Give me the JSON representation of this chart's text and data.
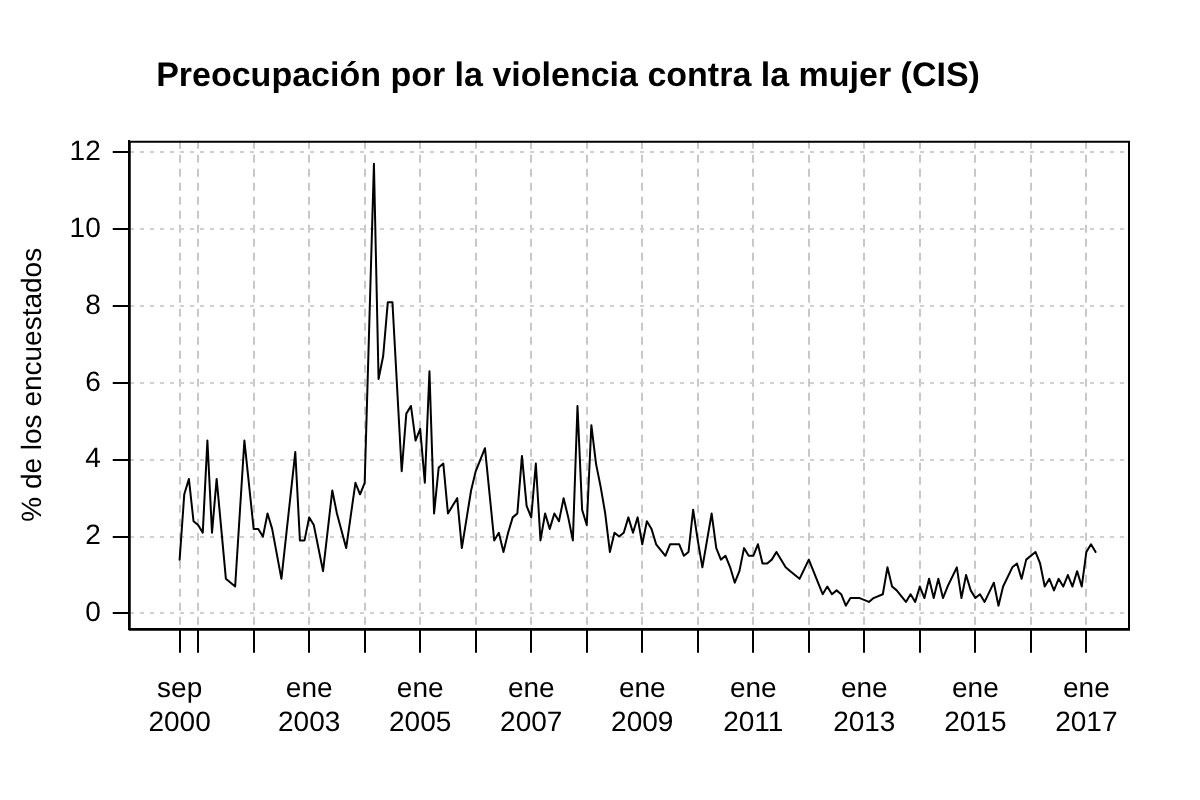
{
  "chart_data": {
    "type": "line",
    "title": "Preocupación por la violencia contra la mujer (CIS)",
    "ylabel": "% de los encuestados",
    "x": [
      "2000-09",
      "2000-10",
      "2000-11",
      "2000-12",
      "2001-01",
      "2001-02",
      "2001-03",
      "2001-04",
      "2001-05",
      "2001-06",
      "2001-07",
      "2001-09",
      "2001-11",
      "2002-01",
      "2002-02",
      "2002-03",
      "2002-04",
      "2002-05",
      "2002-07",
      "2002-10",
      "2002-11",
      "2002-12",
      "2003-01",
      "2003-02",
      "2003-04",
      "2003-06",
      "2003-07",
      "2003-09",
      "2003-11",
      "2003-12",
      "2004-01",
      "2004-03",
      "2004-04",
      "2004-05",
      "2004-06",
      "2004-07",
      "2004-09",
      "2004-10",
      "2004-11",
      "2004-12",
      "2005-01",
      "2005-02",
      "2005-03",
      "2005-04",
      "2005-05",
      "2005-06",
      "2005-07",
      "2005-08",
      "2005-09",
      "2005-10",
      "2005-12",
      "2006-01",
      "2006-03",
      "2006-05",
      "2006-06",
      "2006-07",
      "2006-08",
      "2006-09",
      "2006-10",
      "2006-11",
      "2006-12",
      "2007-01",
      "2007-02",
      "2007-03",
      "2007-04",
      "2007-05",
      "2007-06",
      "2007-07",
      "2007-08",
      "2007-09",
      "2007-10",
      "2007-11",
      "2007-12",
      "2008-01",
      "2008-02",
      "2008-03",
      "2008-04",
      "2008-05",
      "2008-06",
      "2008-07",
      "2008-08",
      "2008-09",
      "2008-10",
      "2008-11",
      "2008-12",
      "2009-01",
      "2009-02",
      "2009-03",
      "2009-04",
      "2009-06",
      "2009-07",
      "2009-09",
      "2009-10",
      "2009-11",
      "2009-12",
      "2010-01",
      "2010-02",
      "2010-04",
      "2010-05",
      "2010-06",
      "2010-07",
      "2010-08",
      "2010-09",
      "2010-10",
      "2010-11",
      "2010-12",
      "2011-01",
      "2011-02",
      "2011-03",
      "2011-04",
      "2011-05",
      "2011-06",
      "2011-08",
      "2011-09",
      "2011-11",
      "2012-01",
      "2012-02",
      "2012-04",
      "2012-05",
      "2012-06",
      "2012-07",
      "2012-08",
      "2012-09",
      "2012-10",
      "2012-12",
      "2013-02",
      "2013-03",
      "2013-05",
      "2013-06",
      "2013-07",
      "2013-08",
      "2013-10",
      "2013-11",
      "2013-12",
      "2014-01",
      "2014-02",
      "2014-03",
      "2014-04",
      "2014-05",
      "2014-06",
      "2014-07",
      "2014-09",
      "2014-10",
      "2014-11",
      "2014-12",
      "2015-01",
      "2015-02",
      "2015-03",
      "2015-05",
      "2015-06",
      "2015-07",
      "2015-09",
      "2015-10",
      "2015-11",
      "2015-12",
      "2016-02",
      "2016-03",
      "2016-04",
      "2016-05",
      "2016-06",
      "2016-07",
      "2016-08",
      "2016-09",
      "2016-10",
      "2016-11",
      "2016-12",
      "2017-01",
      "2017-02",
      "2017-03"
    ],
    "series": [
      {
        "color": "#000000",
        "values": [
          1.4,
          3.1,
          3.5,
          2.4,
          2.3,
          2.1,
          4.5,
          2.1,
          3.5,
          2.2,
          0.9,
          0.7,
          4.5,
          2.2,
          2.2,
          2.0,
          2.6,
          2.2,
          0.9,
          4.2,
          1.9,
          1.9,
          2.5,
          2.3,
          1.1,
          3.2,
          2.6,
          1.7,
          3.4,
          3.1,
          3.4,
          11.7,
          6.1,
          6.7,
          8.1,
          8.1,
          3.7,
          5.2,
          5.4,
          4.5,
          4.8,
          3.4,
          6.3,
          2.6,
          3.8,
          3.9,
          2.6,
          2.8,
          3.0,
          1.7,
          3.2,
          3.7,
          4.3,
          1.9,
          2.1,
          1.6,
          2.1,
          2.5,
          2.6,
          4.1,
          2.8,
          2.5,
          3.9,
          1.9,
          2.6,
          2.2,
          2.6,
          2.4,
          3.0,
          2.5,
          1.9,
          5.4,
          2.7,
          2.3,
          4.9,
          3.9,
          3.3,
          2.6,
          1.6,
          2.1,
          2.0,
          2.1,
          2.5,
          2.1,
          2.5,
          1.8,
          2.4,
          2.2,
          1.8,
          1.5,
          1.8,
          1.8,
          1.5,
          1.6,
          2.7,
          1.9,
          1.2,
          2.6,
          1.7,
          1.4,
          1.5,
          1.2,
          0.8,
          1.1,
          1.7,
          1.5,
          1.5,
          1.8,
          1.3,
          1.3,
          1.4,
          1.6,
          1.2,
          1.1,
          0.9,
          1.4,
          1.1,
          0.5,
          0.7,
          0.5,
          0.6,
          0.5,
          0.2,
          0.4,
          0.4,
          0.3,
          0.4,
          0.5,
          1.2,
          0.7,
          0.6,
          0.3,
          0.5,
          0.3,
          0.7,
          0.4,
          0.9,
          0.4,
          0.9,
          0.4,
          0.7,
          1.2,
          0.4,
          1.0,
          0.6,
          0.4,
          0.5,
          0.3,
          0.8,
          0.2,
          0.7,
          1.2,
          1.3,
          0.9,
          1.4,
          1.6,
          1.3,
          0.7,
          0.9,
          0.6,
          0.9,
          0.7,
          1.0,
          0.7,
          1.1,
          0.7,
          1.6,
          1.8,
          1.6
        ]
      }
    ],
    "xlim": [
      "1999-10",
      "2017-10"
    ],
    "xticks": [
      {
        "value": "2000-09",
        "label": "sep 2000"
      },
      {
        "value": "2001-01",
        "label": null
      },
      {
        "value": "2002-01",
        "label": null
      },
      {
        "value": "2003-01",
        "label": "ene 2003"
      },
      {
        "value": "2004-01",
        "label": null
      },
      {
        "value": "2005-01",
        "label": "ene 2005"
      },
      {
        "value": "2006-01",
        "label": null
      },
      {
        "value": "2007-01",
        "label": "ene 2007"
      },
      {
        "value": "2008-01",
        "label": null
      },
      {
        "value": "2009-01",
        "label": "ene 2009"
      },
      {
        "value": "2010-01",
        "label": null
      },
      {
        "value": "2011-01",
        "label": "ene 2011"
      },
      {
        "value": "2012-01",
        "label": null
      },
      {
        "value": "2013-01",
        "label": "ene 2013"
      },
      {
        "value": "2014-01",
        "label": null
      },
      {
        "value": "2015-01",
        "label": "ene 2015"
      },
      {
        "value": "2016-01",
        "label": null
      },
      {
        "value": "2017-01",
        "label": "ene 2017"
      }
    ],
    "ylim": [
      -0.4,
      12.3
    ],
    "yticks": [
      0,
      2,
      4,
      6,
      8,
      10,
      12
    ],
    "grid": true,
    "legend": false,
    "marker": "none",
    "line_style": "solid"
  }
}
